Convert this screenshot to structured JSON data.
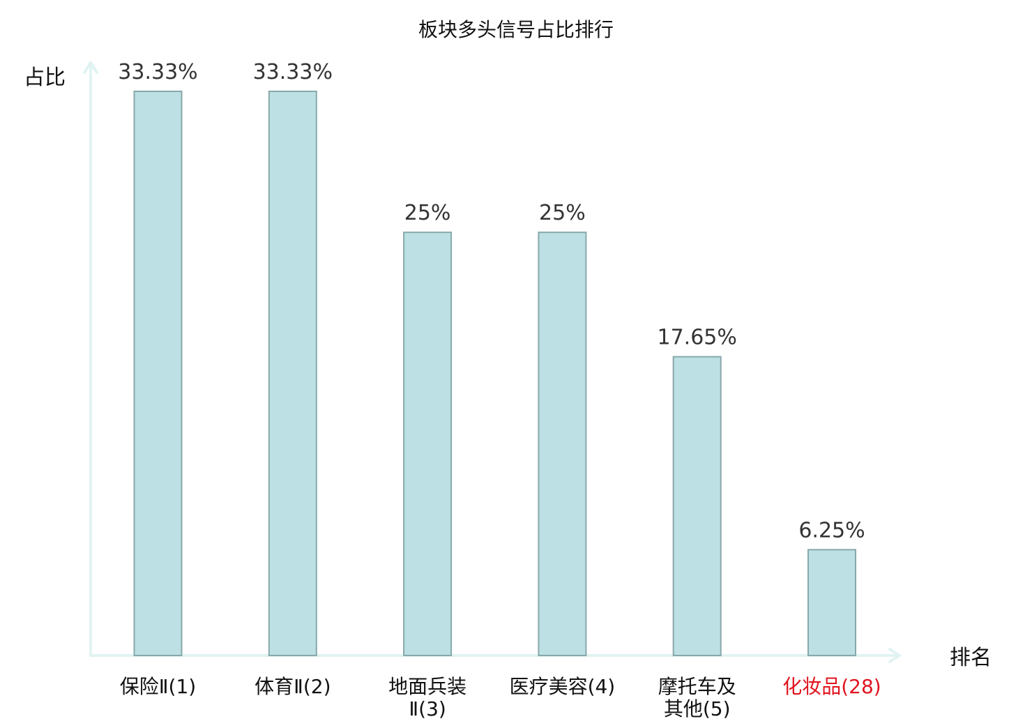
{
  "chart_data": {
    "type": "bar",
    "title": "板块多头信号占比排行",
    "ylabel": "占比",
    "xlabel": "排名",
    "ylim": [
      0,
      35
    ],
    "grid": false,
    "legend": "none",
    "categories": [
      [
        "保险Ⅱ(1)"
      ],
      [
        "体育Ⅱ(2)"
      ],
      [
        "地面兵装",
        "Ⅱ(3)"
      ],
      [
        "医疗美容(4)"
      ],
      [
        "摩托车及",
        "其他(5)"
      ],
      [
        "化妆品(28)"
      ]
    ],
    "value_labels": [
      "33.33%",
      "33.33%",
      "25%",
      "25%",
      "17.65%",
      "6.25%"
    ],
    "values": [
      33.33,
      33.33,
      25,
      25,
      17.65,
      6.25
    ],
    "highlight_index": 5,
    "colors": {
      "bar_fill": "#bce0e3",
      "bar_stroke": "#88a8aa",
      "axis": "#e0f3f2",
      "text": "#111111",
      "value_text": "#333333",
      "highlight_text": "#e0141e"
    }
  }
}
